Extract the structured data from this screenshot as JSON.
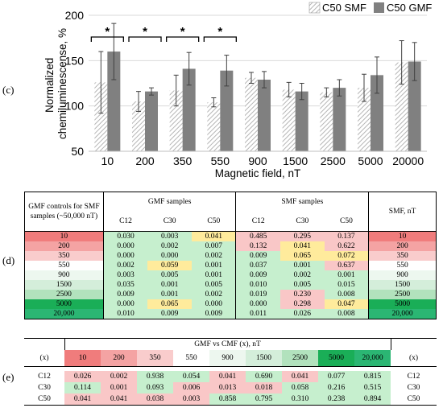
{
  "panels": {
    "c": "(c)",
    "d": "(d)",
    "e": "(e)"
  },
  "chart_data": {
    "type": "bar",
    "xlabel": "Magnetic field, nT",
    "ylabel": "Normalized chemiluminescense, %",
    "ylim": [
      50,
      200
    ],
    "yticks": [
      50,
      100,
      150,
      200
    ],
    "categories": [
      "10",
      "200",
      "350",
      "550",
      "900",
      "1500",
      "2500",
      "5000",
      "20000"
    ],
    "series": [
      {
        "name": "C50 SMF",
        "pattern": "hatched",
        "color": "#d9d9d9",
        "values": [
          126,
          105,
          117,
          104,
          131,
          118,
          115,
          120,
          148
        ],
        "errors": [
          34,
          11,
          17,
          5,
          6,
          8,
          5,
          15,
          24
        ]
      },
      {
        "name": "C50 GMF",
        "pattern": "solid",
        "color": "#808080",
        "values": [
          160,
          116,
          141,
          139,
          129,
          116,
          120,
          134,
          149
        ],
        "errors": [
          31,
          4,
          18,
          17,
          9,
          9,
          9,
          20,
          21
        ]
      }
    ],
    "significance": [
      {
        "category": "10",
        "label": "*"
      },
      {
        "category": "200",
        "label": "*"
      },
      {
        "category": "350",
        "label": "*"
      },
      {
        "category": "550",
        "label": "*"
      }
    ],
    "legend_position": "top-right"
  },
  "table_d": {
    "header": {
      "gmf_controls": "GMF controls for SMF samples (~50,000 nT)",
      "gmf_samples": "GMF samples",
      "smf_samples": "SMF samples",
      "smf_nt": "SMF, nT",
      "cols": [
        "C12",
        "C30",
        "C50",
        "C12",
        "C30",
        "C50"
      ]
    },
    "rows": [
      {
        "label": "10",
        "color": "#f07c7c",
        "values": [
          "0.030",
          "0.003",
          "0.041",
          "0.485",
          "0.295",
          "0.137"
        ],
        "colors": [
          "#c6efce",
          "#c6efce",
          "#ffeb9c",
          "#f9c7c7",
          "#f9c7c7",
          "#f9c7c7"
        ]
      },
      {
        "label": "200",
        "color": "#f4a3a3",
        "values": [
          "0.000",
          "0.002",
          "0.007",
          "0.132",
          "0.041",
          "0.622"
        ],
        "colors": [
          "#c6efce",
          "#c6efce",
          "#c6efce",
          "#f9c7c7",
          "#ffeb9c",
          "#f9c7c7"
        ]
      },
      {
        "label": "350",
        "color": "#f9cccc",
        "values": [
          "0.000",
          "0.000",
          "0.002",
          "0.009",
          "0.065",
          "0.072"
        ],
        "colors": [
          "#c6efce",
          "#c6efce",
          "#c6efce",
          "#c6efce",
          "#ffeb9c",
          "#ffeb9c"
        ]
      },
      {
        "label": "550",
        "color": "#ffffff",
        "values": [
          "0.002",
          "0.059",
          "0.001",
          "0.037",
          "0.001",
          "0.637"
        ],
        "colors": [
          "#c6efce",
          "#ffeb9c",
          "#c6efce",
          "#c6efce",
          "#c6efce",
          "#f9c7c7"
        ]
      },
      {
        "label": "900",
        "color": "#edf7ef",
        "values": [
          "0.003",
          "0.005",
          "0.001",
          "0.009",
          "0.002",
          "0.001"
        ],
        "colors": [
          "#c6efce",
          "#c6efce",
          "#c6efce",
          "#c6efce",
          "#c6efce",
          "#c6efce"
        ]
      },
      {
        "label": "1500",
        "color": "#d4eeda",
        "values": [
          "0.035",
          "0.001",
          "0.005",
          "0.010",
          "0.005",
          "0.015"
        ],
        "colors": [
          "#c6efce",
          "#c6efce",
          "#c6efce",
          "#c6efce",
          "#c6efce",
          "#c6efce"
        ]
      },
      {
        "label": "2500",
        "color": "#b2e2bd",
        "values": [
          "0.009",
          "0.001",
          "0.002",
          "0.019",
          "0.230",
          "0.008"
        ],
        "colors": [
          "#c6efce",
          "#c6efce",
          "#c6efce",
          "#c6efce",
          "#f9c7c7",
          "#c6efce"
        ]
      },
      {
        "label": "5000",
        "color": "#1aae57",
        "values": [
          "0.000",
          "0.065",
          "0.000",
          "0.000",
          "0.298",
          "0.047"
        ],
        "colors": [
          "#c6efce",
          "#ffeb9c",
          "#c6efce",
          "#c6efce",
          "#f9c7c7",
          "#ffeb9c"
        ]
      },
      {
        "label": "20,000",
        "color": "#2bb673",
        "values": [
          "0.010",
          "0.009",
          "0.009",
          "0.011",
          "0.026",
          "0.008"
        ],
        "colors": [
          "#c6efce",
          "#c6efce",
          "#c6efce",
          "#c6efce",
          "#c6efce",
          "#c6efce"
        ]
      }
    ]
  },
  "table_e": {
    "title": "GMF vs CMF (x), nT",
    "x_label": "(x)",
    "x_headers": [
      {
        "label": "10",
        "color": "#f07c7c"
      },
      {
        "label": "200",
        "color": "#f4a3a3"
      },
      {
        "label": "350",
        "color": "#f9cccc"
      },
      {
        "label": "550",
        "color": "#ffffff"
      },
      {
        "label": "900",
        "color": "#edf7ef"
      },
      {
        "label": "1500",
        "color": "#d4eeda"
      },
      {
        "label": "2500",
        "color": "#b2e2bd"
      },
      {
        "label": "5000",
        "color": "#1aae57"
      },
      {
        "label": "20,000",
        "color": "#2bb673"
      }
    ],
    "rows": [
      {
        "label": "C12",
        "values": [
          "0.026",
          "0.002",
          "0.938",
          "0.054",
          "0.041",
          "0.690",
          "0.041",
          "0.077",
          "0.815"
        ],
        "colors": [
          "#f9c7c7",
          "#f9c7c7",
          "#c6efce",
          "#c6efce",
          "#f9c7c7",
          "#c6efce",
          "#f9c7c7",
          "#c6efce",
          "#c6efce"
        ]
      },
      {
        "label": "C30",
        "values": [
          "0.114",
          "0.001",
          "0.093",
          "0.006",
          "0.013",
          "0.018",
          "0.058",
          "0.216",
          "0.515"
        ],
        "colors": [
          "#c6efce",
          "#f9c7c7",
          "#c6efce",
          "#f9c7c7",
          "#f9c7c7",
          "#f9c7c7",
          "#c6efce",
          "#c6efce",
          "#c6efce"
        ]
      },
      {
        "label": "C50",
        "values": [
          "0.041",
          "0.041",
          "0.038",
          "0.003",
          "0.858",
          "0.795",
          "0.310",
          "0.238",
          "0.894"
        ],
        "colors": [
          "#f9c7c7",
          "#f9c7c7",
          "#f9c7c7",
          "#f9c7c7",
          "#c6efce",
          "#c6efce",
          "#c6efce",
          "#c6efce",
          "#c6efce"
        ]
      }
    ]
  }
}
